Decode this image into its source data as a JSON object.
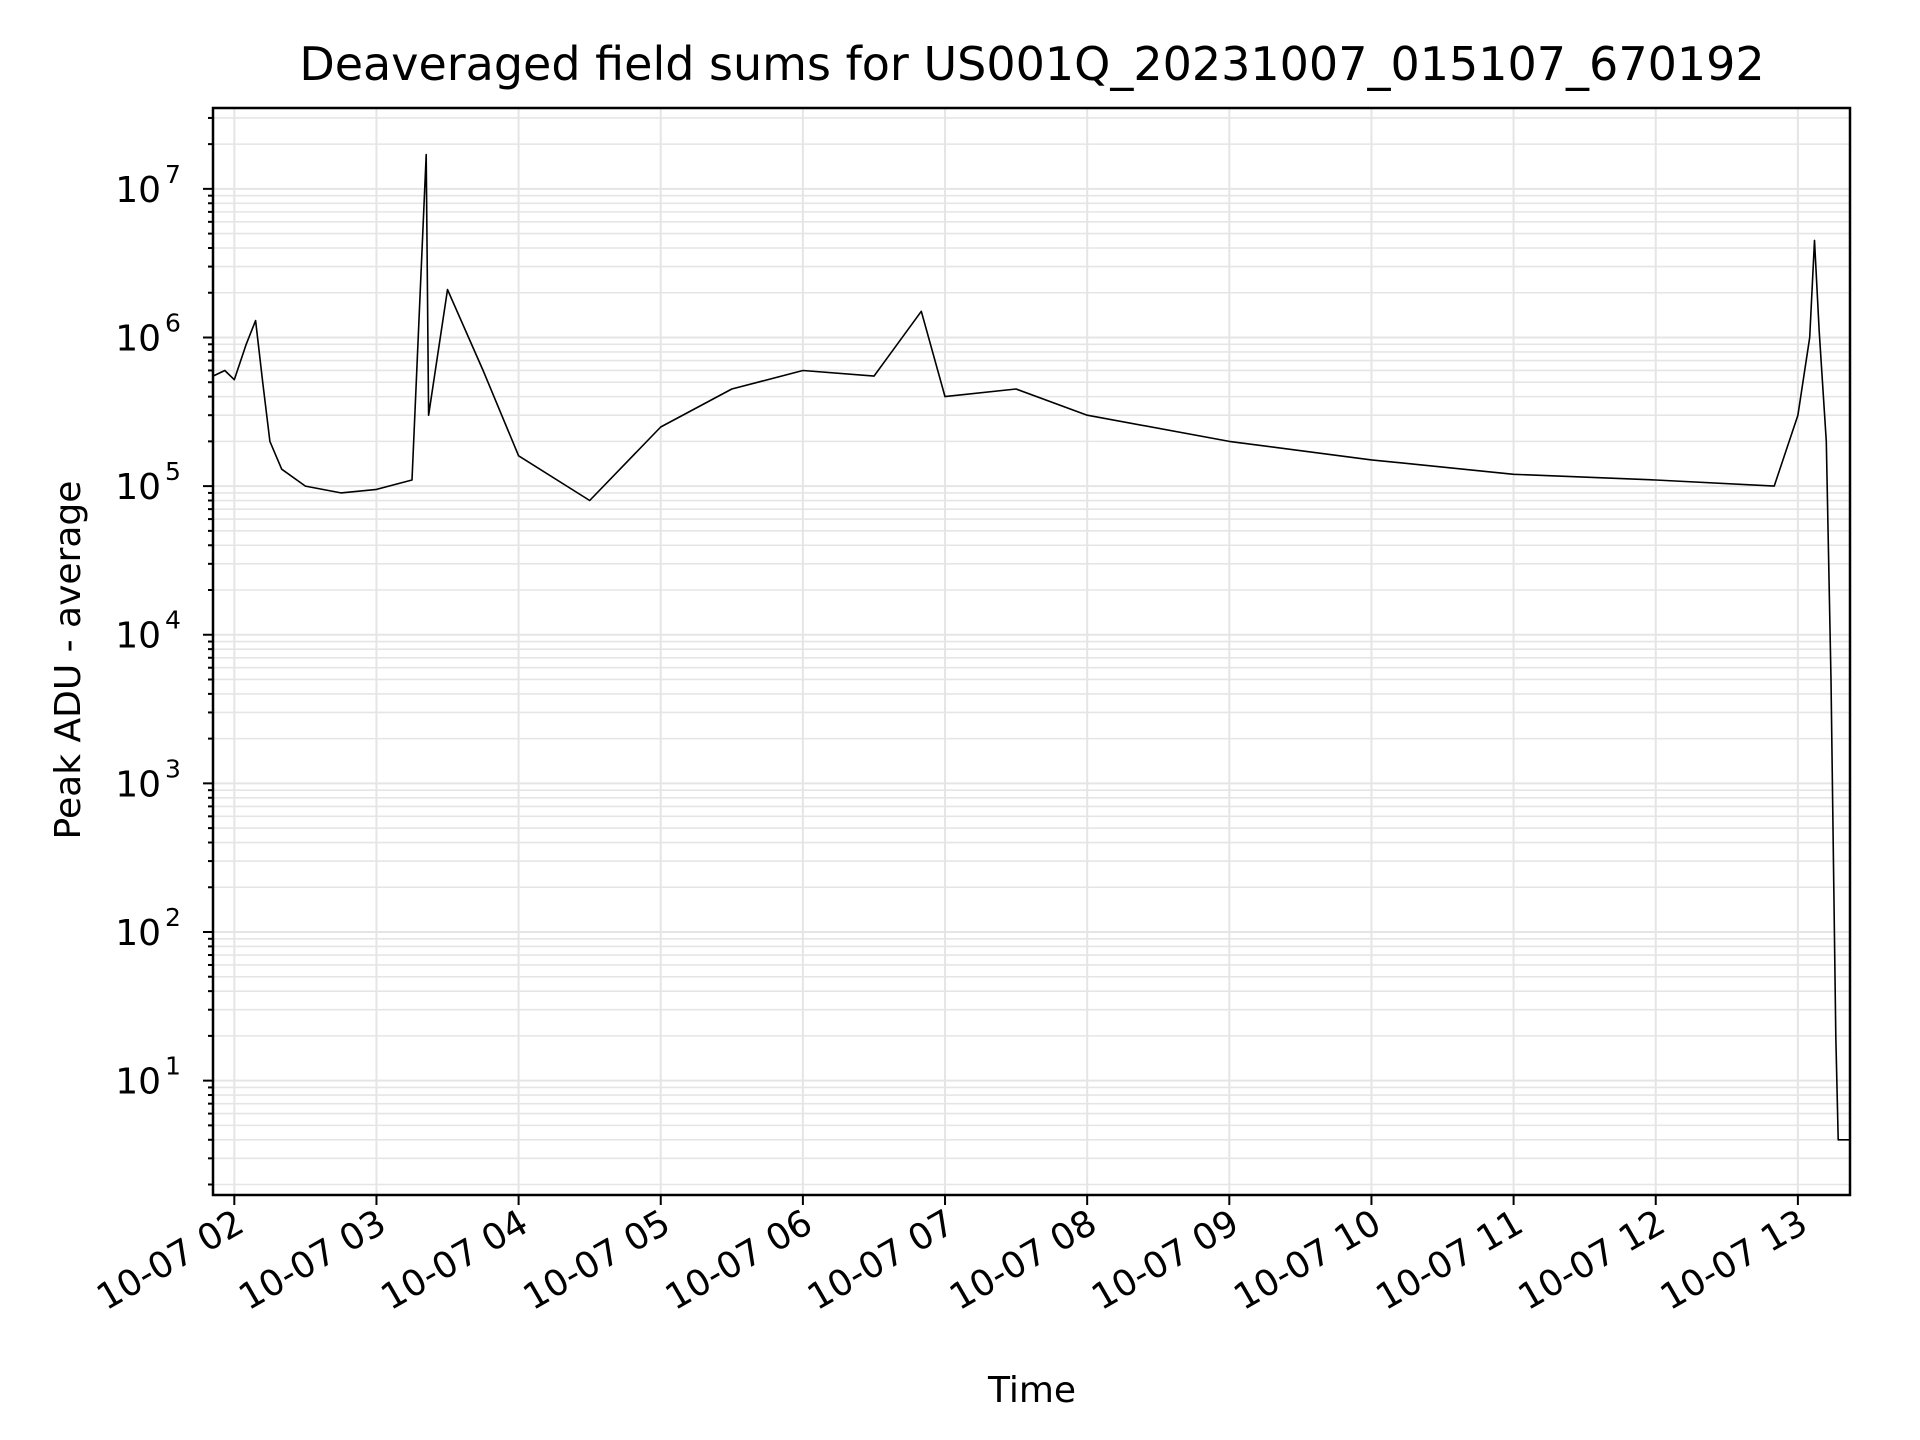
{
  "chart_data": {
    "type": "line",
    "title": "Deaveraged field sums for US001Q_20231007_015107_670192",
    "xlabel": "Time",
    "ylabel": "Peak ADU - average",
    "yscale": "log",
    "grid": true,
    "line_color": "#000000",
    "grid_color": "#e5e5e5",
    "x_ticks": [
      "10-07 02",
      "10-07 03",
      "10-07 04",
      "10-07 05",
      "10-07 06",
      "10-07 07",
      "10-07 08",
      "10-07 09",
      "10-07 10",
      "10-07 11",
      "10-07 12",
      "10-07 13"
    ],
    "y_ticks": [
      {
        "base": "10",
        "exp": "1",
        "value": 10
      },
      {
        "base": "10",
        "exp": "2",
        "value": 100
      },
      {
        "base": "10",
        "exp": "3",
        "value": 1000
      },
      {
        "base": "10",
        "exp": "4",
        "value": 10000
      },
      {
        "base": "10",
        "exp": "5",
        "value": 100000
      },
      {
        "base": "10",
        "exp": "6",
        "value": 1000000
      },
      {
        "base": "10",
        "exp": "7",
        "value": 10000000
      }
    ],
    "xlim": [
      "2023-10-07 01:51",
      "2023-10-07 13:22"
    ],
    "ylim": [
      1.7,
      35000000
    ],
    "series": [
      {
        "points": [
          [
            "2023-10-07 01:51",
            550000
          ],
          [
            "2023-10-07 01:56",
            600000
          ],
          [
            "2023-10-07 02:00",
            520000
          ],
          [
            "2023-10-07 02:05",
            900000
          ],
          [
            "2023-10-07 02:09",
            1300000
          ],
          [
            "2023-10-07 02:12",
            500000
          ],
          [
            "2023-10-07 02:15",
            200000
          ],
          [
            "2023-10-07 02:20",
            130000
          ],
          [
            "2023-10-07 02:30",
            100000
          ],
          [
            "2023-10-07 02:45",
            90000
          ],
          [
            "2023-10-07 03:00",
            95000
          ],
          [
            "2023-10-07 03:15",
            110000
          ],
          [
            "2023-10-07 03:21",
            17000000
          ],
          [
            "2023-10-07 03:22",
            300000
          ],
          [
            "2023-10-07 03:30",
            2100000
          ],
          [
            "2023-10-07 03:45",
            600000
          ],
          [
            "2023-10-07 04:00",
            160000
          ],
          [
            "2023-10-07 04:30",
            80000
          ],
          [
            "2023-10-07 05:00",
            250000
          ],
          [
            "2023-10-07 05:30",
            450000
          ],
          [
            "2023-10-07 06:00",
            600000
          ],
          [
            "2023-10-07 06:30",
            550000
          ],
          [
            "2023-10-07 06:50",
            1500000
          ],
          [
            "2023-10-07 07:00",
            400000
          ],
          [
            "2023-10-07 07:30",
            450000
          ],
          [
            "2023-10-07 08:00",
            300000
          ],
          [
            "2023-10-07 09:00",
            200000
          ],
          [
            "2023-10-07 10:00",
            150000
          ],
          [
            "2023-10-07 11:00",
            120000
          ],
          [
            "2023-10-07 12:00",
            110000
          ],
          [
            "2023-10-07 12:50",
            100000
          ],
          [
            "2023-10-07 13:00",
            300000
          ],
          [
            "2023-10-07 13:05",
            1000000
          ],
          [
            "2023-10-07 13:07",
            4500000
          ],
          [
            "2023-10-07 13:09",
            1100000
          ],
          [
            "2023-10-07 13:12",
            200000
          ],
          [
            "2023-10-07 13:14",
            5000
          ],
          [
            "2023-10-07 13:16",
            20
          ],
          [
            "2023-10-07 13:17",
            4
          ],
          [
            "2023-10-07 13:22",
            4
          ]
        ]
      }
    ]
  }
}
